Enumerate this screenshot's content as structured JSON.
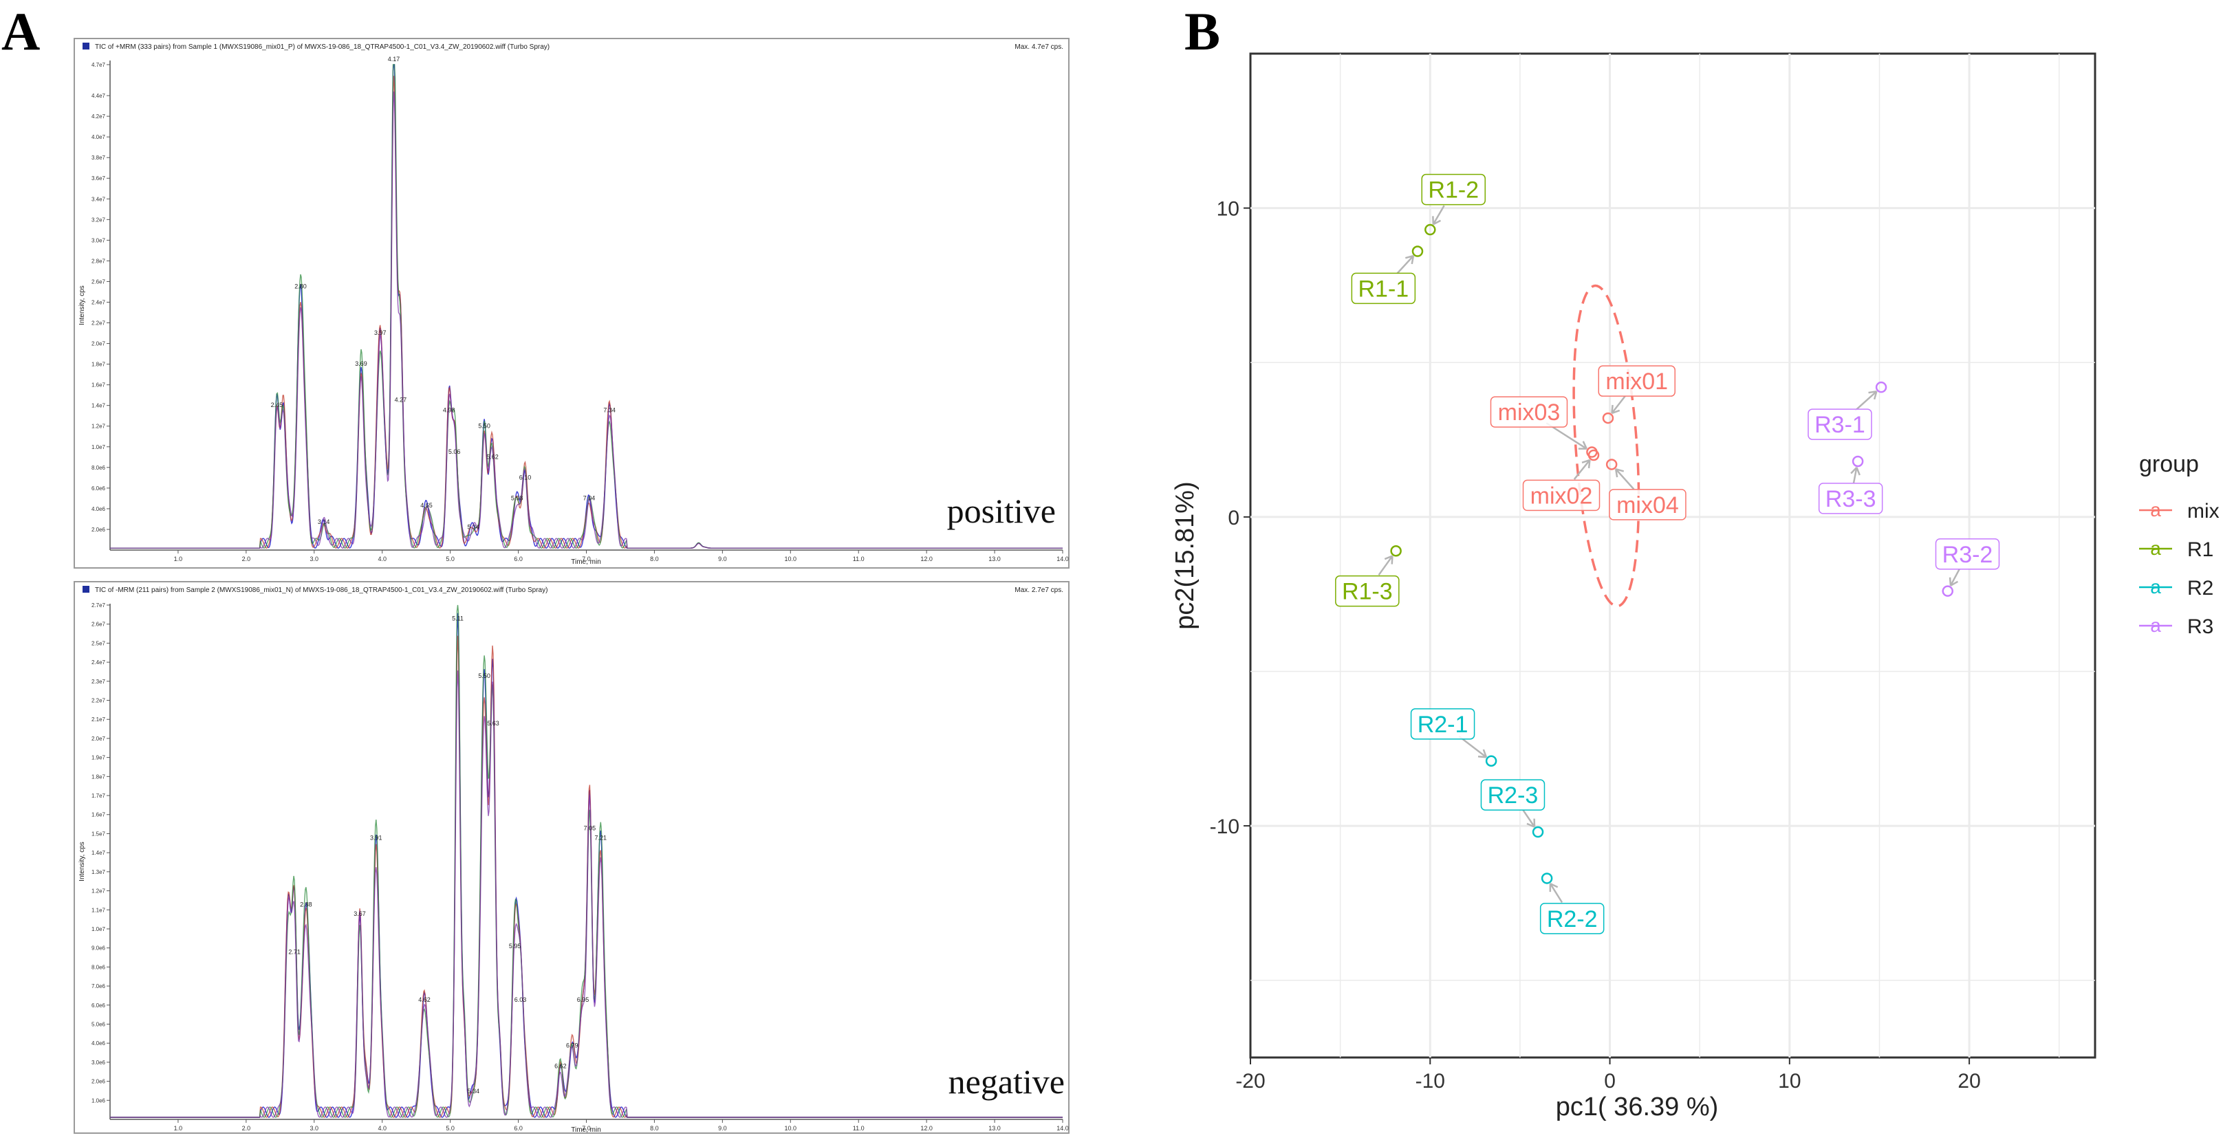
{
  "panel_a": {
    "letter": "A",
    "positive": {
      "header": "TIC of +MRM (333 pairs) from Sample 1 (MWXS19086_mix01_P) of MWXS-19-086_18_QTRAP4500-1_C01_V3.4_ZW_20190602.wiff (Turbo Spray)",
      "max": "Max. 4.7e7 cps.",
      "ylabel": "Intensity, cps",
      "xlabel": "Time, min",
      "label": "positive"
    },
    "negative": {
      "header": "TIC of -MRM (211 pairs) from Sample 2 (MWXS19086_mix01_N) of MWXS-19-086_18_QTRAP4500-1_C01_V3.4_ZW_20190602.wiff (Turbo Spray)",
      "max": "Max. 2.7e7 cps.",
      "ylabel": "Intensity, cps",
      "xlabel": "Time, min",
      "label": "negative"
    },
    "series_colors": [
      "#3b3bd6",
      "#c0392b",
      "#2e8b3e",
      "#7b2fa8"
    ]
  },
  "panel_b": {
    "letter": "B",
    "legend_title": "group",
    "legend_glyph": "a",
    "groups": [
      {
        "name": "mix",
        "color": "#F8766D"
      },
      {
        "name": "R1",
        "color": "#7CAE00"
      },
      {
        "name": "R2",
        "color": "#00BFC4"
      },
      {
        "name": "R3",
        "color": "#C77CFF"
      }
    ]
  },
  "chart_data": [
    {
      "type": "line",
      "title": "TIC of +MRM (333 pairs) positive",
      "xlabel": "Time, min",
      "ylabel": "Intensity, cps",
      "xlim": [
        0,
        14.0
      ],
      "ylim": [
        0,
        47000000.0
      ],
      "x_ticks": [
        "1.0",
        "2.0",
        "3.0",
        "4.0",
        "5.0",
        "6.0",
        "7.0",
        "8.0",
        "9.0",
        "10.0",
        "11.0",
        "12.0",
        "13.0",
        "14.0"
      ],
      "y_ticks": [
        "2.0e6",
        "4.0e6",
        "6.0e6",
        "8.0e6",
        "1.0e7",
        "1.2e7",
        "1.4e7",
        "1.6e7",
        "1.8e7",
        "2.0e7",
        "2.2e7",
        "2.4e7",
        "2.6e7",
        "2.8e7",
        "3.0e7",
        "3.2e7",
        "3.4e7",
        "3.6e7",
        "3.8e7",
        "4.0e7",
        "4.2e7",
        "4.4e7",
        "4.7e7"
      ],
      "peaks": [
        {
          "t": 2.45,
          "y": 13500000.0,
          "label": "2.45"
        },
        {
          "t": 2.55,
          "y": 11000000.0,
          "label": ""
        },
        {
          "t": 2.8,
          "y": 25000000.0,
          "label": "2.80"
        },
        {
          "t": 3.14,
          "y": 2200000.0,
          "label": "3.14"
        },
        {
          "t": 3.69,
          "y": 17500000.0,
          "label": "3.69"
        },
        {
          "t": 3.97,
          "y": 20500000.0,
          "label": "3.97"
        },
        {
          "t": 4.17,
          "y": 47000000.0,
          "label": "4.17"
        },
        {
          "t": 4.27,
          "y": 14000000.0,
          "label": "4.27"
        },
        {
          "t": 4.65,
          "y": 3800000.0,
          "label": "4.65"
        },
        {
          "t": 4.98,
          "y": 13000000.0,
          "label": "4.98"
        },
        {
          "t": 5.06,
          "y": 9000000.0,
          "label": "5.06"
        },
        {
          "t": 5.34,
          "y": 1700000.0,
          "label": "5.34"
        },
        {
          "t": 5.5,
          "y": 11500000.0,
          "label": "5.50"
        },
        {
          "t": 5.62,
          "y": 8500000.0,
          "label": "5.62"
        },
        {
          "t": 5.98,
          "y": 4500000.0,
          "label": "5.98"
        },
        {
          "t": 6.1,
          "y": 6500000.0,
          "label": "6.10"
        },
        {
          "t": 7.04,
          "y": 4500000.0,
          "label": "7.04"
        },
        {
          "t": 7.34,
          "y": 13000000.0,
          "label": "7.34"
        },
        {
          "t": 8.65,
          "y": 500000.0,
          "label": ""
        }
      ]
    },
    {
      "type": "line",
      "title": "TIC of -MRM (211 pairs) negative",
      "xlabel": "Time, min",
      "ylabel": "Intensity, cps",
      "xlim": [
        0,
        14.0
      ],
      "ylim": [
        0,
        27000000.0
      ],
      "x_ticks": [
        "1.0",
        "2.0",
        "3.0",
        "4.0",
        "5.0",
        "6.0",
        "7.0",
        "8.0",
        "9.0",
        "10.0",
        "11.0",
        "12.0",
        "13.0",
        "14.0"
      ],
      "y_ticks": [
        "1.0e6",
        "2.0e6",
        "3.0e6",
        "4.0e6",
        "5.0e6",
        "6.0e6",
        "7.0e6",
        "8.0e6",
        "9.0e6",
        "1.0e7",
        "1.1e7",
        "1.2e7",
        "1.3e7",
        "1.4e7",
        "1.5e7",
        "1.6e7",
        "1.7e7",
        "1.8e7",
        "1.9e7",
        "2.0e7",
        "2.1e7",
        "2.2e7",
        "2.3e7",
        "2.4e7",
        "2.5e7",
        "2.6e7",
        "2.7e7"
      ],
      "peaks": [
        {
          "t": 2.71,
          "y": 8500000.0,
          "label": "2.71"
        },
        {
          "t": 2.62,
          "y": 11000000.0,
          "label": ""
        },
        {
          "t": 2.88,
          "y": 11000000.0,
          "label": "2.88"
        },
        {
          "t": 3.67,
          "y": 10500000.0,
          "label": "3.67"
        },
        {
          "t": 3.91,
          "y": 14500000.0,
          "label": "3.91"
        },
        {
          "t": 4.62,
          "y": 6000000.0,
          "label": "4.62"
        },
        {
          "t": 5.11,
          "y": 26000000.0,
          "label": "5.11"
        },
        {
          "t": 5.34,
          "y": 1200000.0,
          "label": "5.34"
        },
        {
          "t": 5.5,
          "y": 23000000.0,
          "label": "5.50"
        },
        {
          "t": 5.63,
          "y": 20500000.0,
          "label": "5.63"
        },
        {
          "t": 5.95,
          "y": 8800000.0,
          "label": "5.95"
        },
        {
          "t": 6.03,
          "y": 6000000.0,
          "label": "6.03"
        },
        {
          "t": 6.62,
          "y": 2500000.0,
          "label": "6.62"
        },
        {
          "t": 6.79,
          "y": 3600000.0,
          "label": "6.79"
        },
        {
          "t": 6.95,
          "y": 6000000.0,
          "label": "6.95"
        },
        {
          "t": 7.05,
          "y": 15000000.0,
          "label": "7.05"
        },
        {
          "t": 7.21,
          "y": 14500000.0,
          "label": "7.21"
        }
      ]
    },
    {
      "type": "scatter",
      "xlabel": "pc1( 36.39 %)",
      "ylabel": "pc2(15.81%)",
      "xlim": [
        -20,
        27
      ],
      "ylim": [
        -17.5,
        15
      ],
      "x_ticks": [
        -20,
        -10,
        0,
        10,
        20
      ],
      "y_ticks": [
        -10,
        0,
        10
      ],
      "legend_title": "group",
      "points": [
        {
          "label": "mix01",
          "group": "mix",
          "x": -0.1,
          "y": 3.2,
          "lx": 1.5,
          "ly": 4.4
        },
        {
          "label": "mix02",
          "group": "mix",
          "x": -0.9,
          "y": 2.0,
          "lx": -2.7,
          "ly": 0.7
        },
        {
          "label": "mix03",
          "group": "mix",
          "x": -1.0,
          "y": 2.1,
          "lx": -4.5,
          "ly": 3.4
        },
        {
          "label": "mix04",
          "group": "mix",
          "x": 0.1,
          "y": 1.7,
          "lx": 2.1,
          "ly": 0.4
        },
        {
          "label": "R1-1",
          "group": "R1",
          "x": -10.7,
          "y": 8.6,
          "lx": -12.6,
          "ly": 7.4
        },
        {
          "label": "R1-2",
          "group": "R1",
          "x": -10.0,
          "y": 9.3,
          "lx": -8.7,
          "ly": 10.6
        },
        {
          "label": "R1-3",
          "group": "R1",
          "x": -11.9,
          "y": -1.1,
          "lx": -13.5,
          "ly": -2.4
        },
        {
          "label": "R2-1",
          "group": "R2",
          "x": -6.6,
          "y": -7.9,
          "lx": -9.3,
          "ly": -6.7
        },
        {
          "label": "R2-2",
          "group": "R2",
          "x": -3.5,
          "y": -11.7,
          "lx": -2.1,
          "ly": -13.0
        },
        {
          "label": "R2-3",
          "group": "R2",
          "x": -4.0,
          "y": -10.2,
          "lx": -5.4,
          "ly": -9.0
        },
        {
          "label": "R3-1",
          "group": "R3",
          "x": 15.1,
          "y": 4.2,
          "lx": 12.8,
          "ly": 3.0
        },
        {
          "label": "R3-2",
          "group": "R3",
          "x": 18.8,
          "y": -2.4,
          "lx": 19.9,
          "ly": -1.2
        },
        {
          "label": "R3-3",
          "group": "R3",
          "x": 13.8,
          "y": 1.8,
          "lx": 13.4,
          "ly": 0.6
        }
      ],
      "ellipse": {
        "group": "mix",
        "cx": -0.2,
        "cy": 2.3,
        "rx": 1.7,
        "ry": 5.2
      }
    }
  ]
}
